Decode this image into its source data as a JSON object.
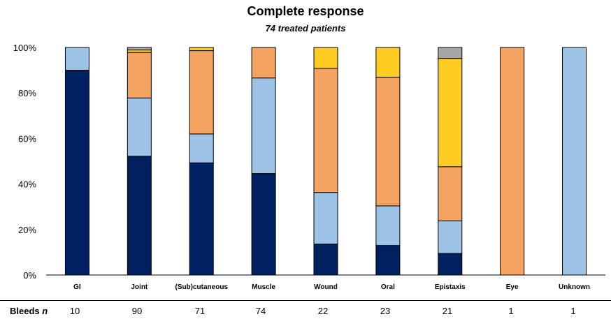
{
  "chart_data": {
    "type": "bar",
    "stacked": true,
    "title": "Complete response",
    "subtitle": "74 treated patients",
    "categories": [
      "GI",
      "Joint",
      "(Sub)cutaneous",
      "Muscle",
      "Wound",
      "Oral",
      "Epistaxis",
      "Eye",
      "Unknown"
    ],
    "series": [
      {
        "color": "#002060",
        "values": [
          90,
          52.2,
          49.3,
          44.6,
          13.6,
          13.0,
          9.5,
          0,
          0
        ]
      },
      {
        "color": "#9DC3E6",
        "values": [
          10,
          25.6,
          12.7,
          42.0,
          22.7,
          17.4,
          14.3,
          0,
          100
        ]
      },
      {
        "color": "#F4A460",
        "values": [
          0,
          20.0,
          36.6,
          13.4,
          54.5,
          56.5,
          23.8,
          100,
          0
        ]
      },
      {
        "color": "#FFCC22",
        "values": [
          0,
          1.1,
          1.4,
          0,
          9.2,
          13.1,
          47.6,
          0,
          0
        ]
      },
      {
        "color": "#A6A6A6",
        "values": [
          0,
          1.1,
          0,
          0,
          0,
          0,
          4.8,
          0,
          0
        ]
      }
    ],
    "ylim": [
      0,
      100
    ],
    "yticks": [
      "0%",
      "20%",
      "40%",
      "60%",
      "80%",
      "100%"
    ],
    "grid": false
  },
  "bleeds_row": {
    "label": "Bleeds",
    "label_suffix": "n",
    "values": [
      "10",
      "90",
      "71",
      "74",
      "22",
      "23",
      "21",
      "1",
      "1"
    ]
  }
}
